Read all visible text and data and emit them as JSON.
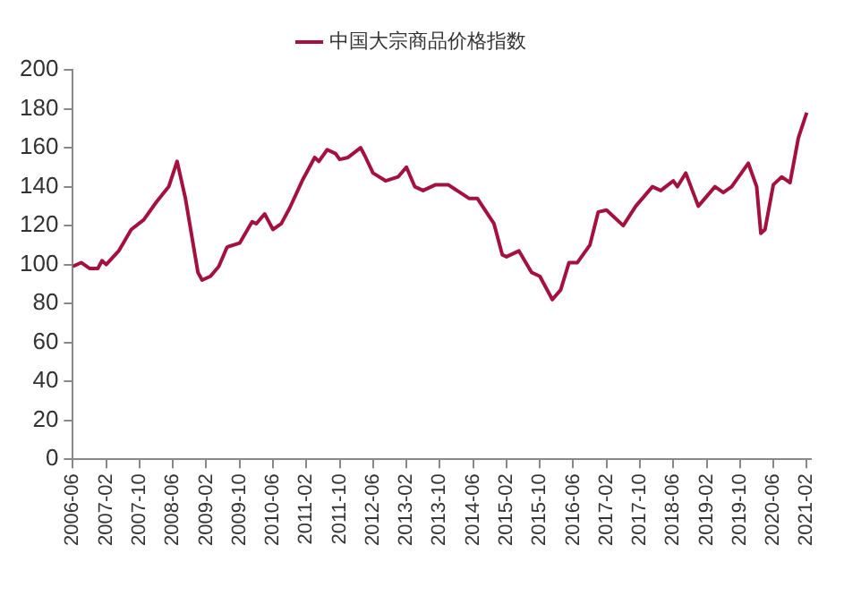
{
  "chart_data": {
    "type": "line",
    "legend": "top",
    "grid": false,
    "marker": "none",
    "line_style": "solid",
    "x": [
      "2006-06",
      "2006-08",
      "2006-10",
      "2006-12",
      "2007-01",
      "2007-02",
      "2007-05",
      "2007-08",
      "2007-11",
      "2008-02",
      "2008-05",
      "2008-07",
      "2008-09",
      "2008-12",
      "2009-01",
      "2009-03",
      "2009-05",
      "2009-07",
      "2009-10",
      "2010-01",
      "2010-02",
      "2010-04",
      "2010-06",
      "2010-08",
      "2010-10",
      "2011-01",
      "2011-04",
      "2011-05",
      "2011-07",
      "2011-09",
      "2011-10",
      "2011-12",
      "2012-03",
      "2012-04",
      "2012-06",
      "2012-09",
      "2012-12",
      "2013-02",
      "2013-04",
      "2013-06",
      "2013-09",
      "2013-12",
      "2014-05",
      "2014-07",
      "2014-11",
      "2015-01",
      "2015-02",
      "2015-05",
      "2015-08",
      "2015-10",
      "2016-01",
      "2016-03",
      "2016-05",
      "2016-07",
      "2016-10",
      "2016-12",
      "2017-02",
      "2017-06",
      "2017-09",
      "2018-01",
      "2018-03",
      "2018-06",
      "2018-07",
      "2018-09",
      "2018-12",
      "2019-04",
      "2019-06",
      "2019-08",
      "2019-12",
      "2020-02",
      "2020-03",
      "2020-04",
      "2020-06",
      "2020-08",
      "2020-10",
      "2020-12",
      "2021-02"
    ],
    "series": [
      {
        "name": "中国大宗商品价格指数",
        "color": "#a3123f",
        "values": [
          99,
          101,
          98,
          98,
          102,
          100,
          107,
          118,
          123,
          132,
          140,
          153,
          134,
          96,
          92,
          94,
          99,
          109,
          111,
          122,
          121,
          126,
          118,
          121,
          129,
          143,
          155,
          153,
          159,
          157,
          154,
          155,
          160,
          156,
          147,
          143,
          145,
          150,
          140,
          138,
          141,
          141,
          134,
          134,
          121,
          105,
          104,
          107,
          96,
          94,
          82,
          87,
          101,
          101,
          110,
          127,
          128,
          120,
          130,
          140,
          138,
          143,
          140,
          147,
          130,
          140,
          137,
          140,
          152,
          140,
          116,
          118,
          141,
          145,
          142,
          165,
          178
        ]
      }
    ],
    "xlim": [
      "2006-06",
      "2021-03"
    ],
    "xticks": [
      "2006-06",
      "2007-02",
      "2007-10",
      "2008-06",
      "2009-02",
      "2009-10",
      "2010-06",
      "2011-02",
      "2011-10",
      "2012-06",
      "2013-02",
      "2013-10",
      "2014-06",
      "2015-02",
      "2015-10",
      "2016-06",
      "2017-02",
      "2017-10",
      "2018-06",
      "2019-02",
      "2019-10",
      "2020-06",
      "2021-02"
    ],
    "ylim": [
      0,
      200
    ],
    "yticks": [
      0,
      20,
      40,
      60,
      80,
      100,
      120,
      140,
      160,
      180,
      200
    ]
  }
}
